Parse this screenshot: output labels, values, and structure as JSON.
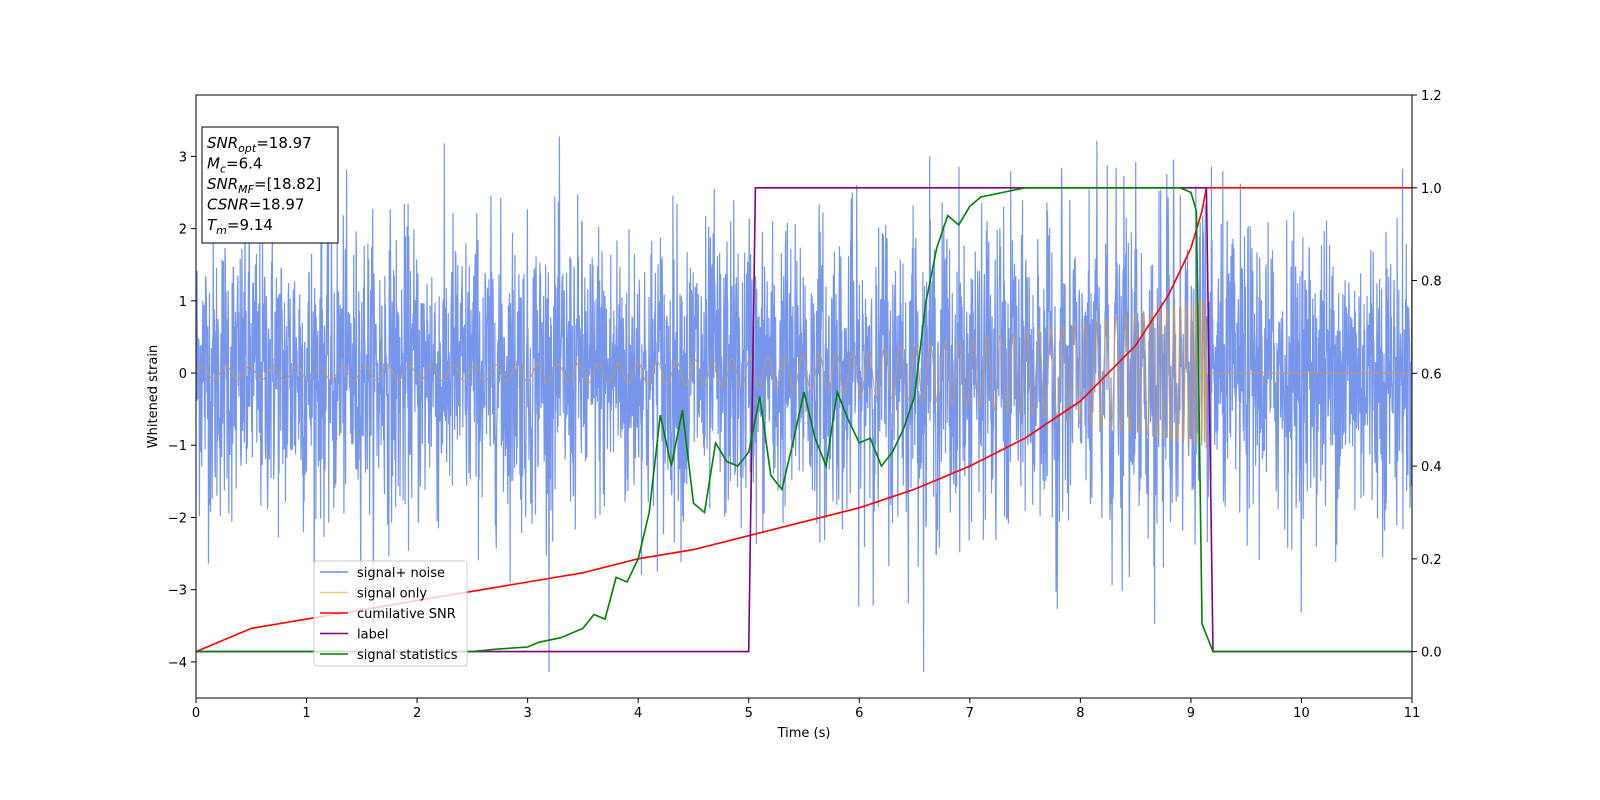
{
  "chart_data": {
    "type": "line",
    "xlabel": "Time (s)",
    "ylabel": "Whitened strain",
    "xlim": [
      0,
      11
    ],
    "ylim": [
      -4.5,
      3.85
    ],
    "y2lim": [
      -0.1,
      1.2
    ],
    "xticks": [
      0,
      1,
      2,
      3,
      4,
      5,
      6,
      7,
      8,
      9,
      10,
      11
    ],
    "yticks": [
      -4,
      -3,
      -2,
      -1,
      0,
      1,
      2,
      3
    ],
    "y2ticks": [
      0.0,
      0.2,
      0.4,
      0.6,
      0.8,
      1.0,
      1.2
    ],
    "grid": false,
    "legend_position": "lower-left",
    "annotation_box": {
      "position": "top-left",
      "lines": [
        {
          "base": "SNR",
          "sub": "opt",
          "rest": "=18.97"
        },
        {
          "base": "M",
          "sub": "c",
          "rest": "=6.4"
        },
        {
          "base": "SNR",
          "sub": "MF",
          "rest": "=[18.82]"
        },
        {
          "base": "CSNR",
          "sub": "",
          "rest": "=18.97"
        },
        {
          "base": "T",
          "sub": "m",
          "rest": "=9.14"
        }
      ]
    },
    "series": [
      {
        "name": "signal+ noise",
        "axis": "left",
        "color": "#6b8ce8",
        "generated": "noise_plus_chirp",
        "noise_std": 1.0,
        "x_range": [
          0,
          11
        ]
      },
      {
        "name": "signal only",
        "axis": "left",
        "color": "#f5c77e",
        "generated": "chirp",
        "t_merge": 9.14,
        "amp_start": 0.1,
        "amp_end": 1.05
      },
      {
        "name": "cumilative SNR",
        "axis": "right",
        "color": "#ff0000",
        "x": [
          0,
          0.5,
          1,
          1.5,
          2,
          2.5,
          3,
          3.5,
          4,
          4.5,
          5,
          5.5,
          6,
          6.5,
          7,
          7.5,
          8,
          8.5,
          8.8,
          9.0,
          9.1,
          9.14,
          11
        ],
        "y": [
          0.0,
          0.05,
          0.07,
          0.09,
          0.11,
          0.13,
          0.15,
          0.17,
          0.2,
          0.22,
          0.25,
          0.28,
          0.31,
          0.35,
          0.4,
          0.46,
          0.54,
          0.66,
          0.77,
          0.87,
          0.95,
          1.0,
          1.0
        ]
      },
      {
        "name": "label",
        "axis": "right",
        "color": "#800080",
        "x": [
          0,
          5.0,
          5.06,
          9.14,
          9.2,
          11
        ],
        "y": [
          0,
          0,
          1,
          1,
          0,
          0
        ]
      },
      {
        "name": "signal statistics",
        "axis": "right",
        "color": "#008000",
        "x": [
          0,
          0.5,
          1,
          1.5,
          2,
          2.5,
          2.7,
          3.0,
          3.1,
          3.3,
          3.5,
          3.6,
          3.7,
          3.8,
          3.9,
          4.0,
          4.1,
          4.2,
          4.3,
          4.4,
          4.5,
          4.6,
          4.7,
          4.8,
          4.9,
          5.0,
          5.1,
          5.2,
          5.3,
          5.4,
          5.5,
          5.6,
          5.7,
          5.8,
          5.9,
          6.0,
          6.1,
          6.2,
          6.3,
          6.4,
          6.5,
          6.6,
          6.7,
          6.8,
          6.9,
          7.0,
          7.1,
          7.3,
          7.5,
          8.0,
          8.5,
          8.9,
          9.0,
          9.05,
          9.1,
          9.2,
          11
        ],
        "y": [
          0.0,
          0.0,
          0.0,
          0.0,
          0.0,
          0.0,
          0.005,
          0.01,
          0.02,
          0.03,
          0.05,
          0.08,
          0.07,
          0.16,
          0.15,
          0.2,
          0.3,
          0.51,
          0.4,
          0.52,
          0.32,
          0.3,
          0.45,
          0.41,
          0.4,
          0.43,
          0.55,
          0.38,
          0.35,
          0.45,
          0.56,
          0.46,
          0.4,
          0.56,
          0.5,
          0.45,
          0.46,
          0.4,
          0.43,
          0.48,
          0.55,
          0.75,
          0.87,
          0.94,
          0.92,
          0.96,
          0.98,
          0.99,
          1.0,
          1.0,
          1.0,
          1.0,
          0.99,
          0.95,
          0.06,
          0.0,
          0.0
        ]
      }
    ]
  }
}
